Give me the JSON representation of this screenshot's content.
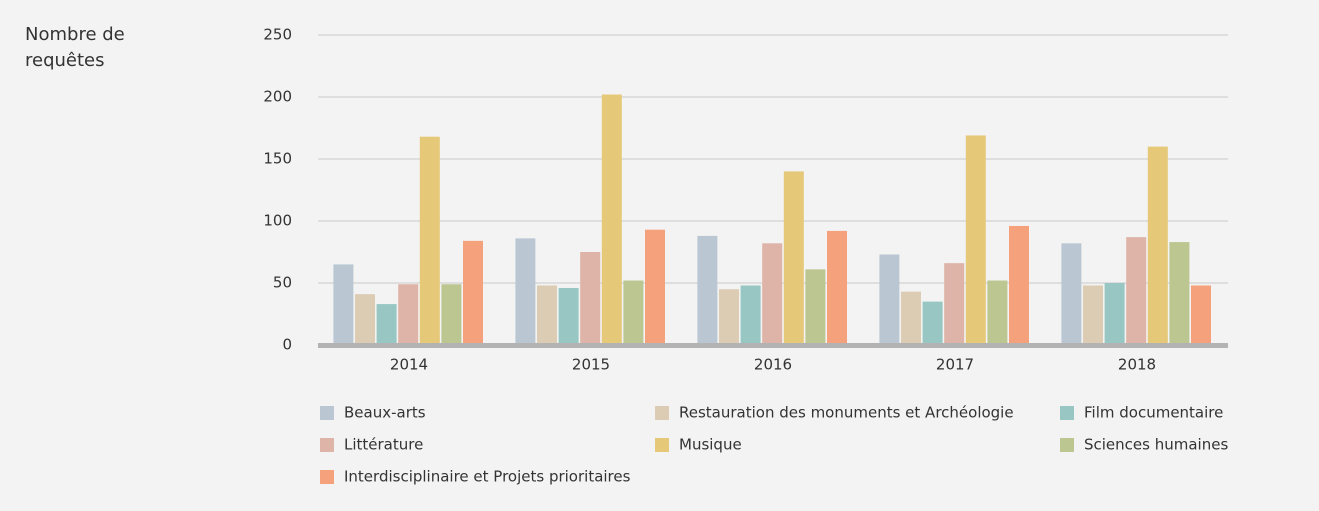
{
  "chart_data": {
    "type": "bar",
    "y_label": "Nombre de requêtes",
    "categories": [
      "2014",
      "2015",
      "2016",
      "2017",
      "2018"
    ],
    "series": [
      {
        "name": "Beaux-arts",
        "color": "#bac7d3",
        "values": [
          65,
          86,
          88,
          73,
          82
        ]
      },
      {
        "name": "Restauration des monuments et Archéologie",
        "color": "#dcccb4",
        "values": [
          41,
          48,
          45,
          43,
          48
        ]
      },
      {
        "name": "Film documentaire",
        "color": "#98c7c3",
        "values": [
          33,
          46,
          48,
          35,
          50
        ]
      },
      {
        "name": "Littérature",
        "color": "#deb4a8",
        "values": [
          49,
          75,
          82,
          66,
          87
        ]
      },
      {
        "name": "Musique",
        "color": "#e6c978",
        "values": [
          168,
          202,
          140,
          169,
          160
        ]
      },
      {
        "name": "Sciences humaines",
        "color": "#bcc690",
        "values": [
          49,
          52,
          61,
          52,
          83
        ]
      },
      {
        "name": "Interdisciplinaire et Projets prioritaires",
        "color": "#f5a27c",
        "values": [
          84,
          93,
          92,
          96,
          48
        ]
      }
    ],
    "ylim": [
      0,
      250
    ],
    "yticks": [
      0,
      50,
      100,
      150,
      200,
      250
    ],
    "grid": true
  }
}
